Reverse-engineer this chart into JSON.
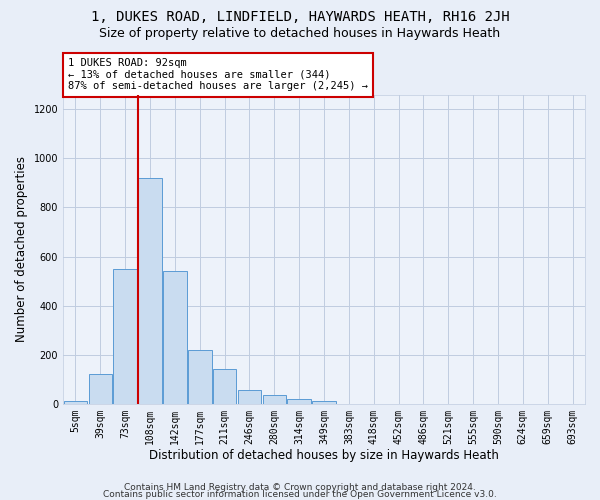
{
  "title": "1, DUKES ROAD, LINDFIELD, HAYWARDS HEATH, RH16 2JH",
  "subtitle": "Size of property relative to detached houses in Haywards Heath",
  "xlabel": "Distribution of detached houses by size in Haywards Heath",
  "ylabel": "Number of detached properties",
  "bar_labels": [
    "5sqm",
    "39sqm",
    "73sqm",
    "108sqm",
    "142sqm",
    "177sqm",
    "211sqm",
    "246sqm",
    "280sqm",
    "314sqm",
    "349sqm",
    "383sqm",
    "418sqm",
    "452sqm",
    "486sqm",
    "521sqm",
    "555sqm",
    "590sqm",
    "624sqm",
    "659sqm",
    "693sqm"
  ],
  "bar_values": [
    10,
    120,
    550,
    920,
    540,
    220,
    140,
    55,
    35,
    20,
    10,
    0,
    0,
    0,
    0,
    0,
    0,
    0,
    0,
    0,
    0
  ],
  "bar_color": "#c9dcf0",
  "bar_edge_color": "#5b9bd5",
  "vline_color": "#cc0000",
  "vline_x_index": 2,
  "ylim": [
    0,
    1260
  ],
  "yticks": [
    0,
    200,
    400,
    600,
    800,
    1000,
    1200
  ],
  "annotation_text": "1 DUKES ROAD: 92sqm\n← 13% of detached houses are smaller (344)\n87% of semi-detached houses are larger (2,245) →",
  "annotation_box_color": "#ffffff",
  "annotation_box_edge": "#cc0000",
  "footer1": "Contains HM Land Registry data © Crown copyright and database right 2024.",
  "footer2": "Contains public sector information licensed under the Open Government Licence v3.0.",
  "bg_color": "#e8eef8",
  "plot_bg_color": "#edf2fa",
  "grid_color": "#c0cce0",
  "title_fontsize": 10,
  "subtitle_fontsize": 9,
  "axis_label_fontsize": 8.5,
  "tick_fontsize": 7,
  "footer_fontsize": 6.5,
  "annot_fontsize": 7.5
}
